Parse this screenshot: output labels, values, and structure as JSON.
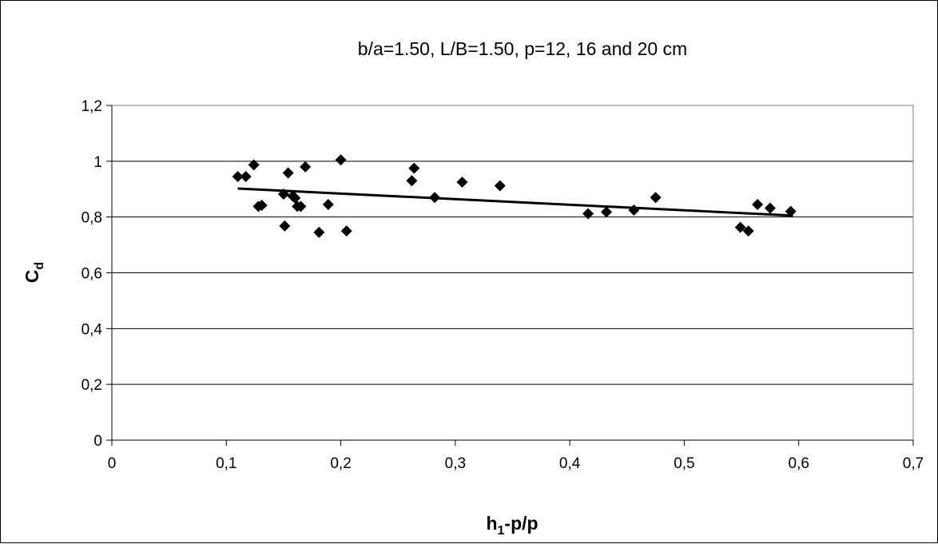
{
  "chart_data": {
    "type": "scatter",
    "title": "b/a=1.50, L/B=1.50, p=12, 16 and 20 cm",
    "xlabel": {
      "main": "h",
      "sub": "1",
      "rest": "-p/p"
    },
    "ylabel": {
      "main": "C",
      "sub": "d"
    },
    "xlim": [
      0,
      0.7
    ],
    "ylim": [
      0,
      1.2
    ],
    "x_ticks": [
      0,
      0.1,
      0.2,
      0.3,
      0.4,
      0.5,
      0.6,
      0.7
    ],
    "x_tick_labels": [
      "0",
      "0,1",
      "0,2",
      "0,3",
      "0,4",
      "0,5",
      "0,6",
      "0,7"
    ],
    "y_ticks": [
      0,
      0.2,
      0.4,
      0.6,
      0.8,
      1.0,
      1.2
    ],
    "y_tick_labels": [
      "0",
      "0,2",
      "0,4",
      "0,6",
      "0,8",
      "1",
      "1,2"
    ],
    "grid": {
      "horizontal": true,
      "vertical": false
    },
    "colors": {
      "marker": "#000000",
      "trendline": "#000000",
      "grid": "#000000"
    },
    "marker": "diamond",
    "points": [
      {
        "x": 0.11,
        "y": 0.945
      },
      {
        "x": 0.117,
        "y": 0.945
      },
      {
        "x": 0.124,
        "y": 0.987
      },
      {
        "x": 0.128,
        "y": 0.838
      },
      {
        "x": 0.131,
        "y": 0.842
      },
      {
        "x": 0.15,
        "y": 0.882
      },
      {
        "x": 0.151,
        "y": 0.768
      },
      {
        "x": 0.154,
        "y": 0.958
      },
      {
        "x": 0.158,
        "y": 0.875
      },
      {
        "x": 0.16,
        "y": 0.868
      },
      {
        "x": 0.162,
        "y": 0.838
      },
      {
        "x": 0.165,
        "y": 0.838
      },
      {
        "x": 0.169,
        "y": 0.98
      },
      {
        "x": 0.181,
        "y": 0.745
      },
      {
        "x": 0.189,
        "y": 0.845
      },
      {
        "x": 0.2,
        "y": 1.005
      },
      {
        "x": 0.205,
        "y": 0.75
      },
      {
        "x": 0.262,
        "y": 0.93
      },
      {
        "x": 0.264,
        "y": 0.975
      },
      {
        "x": 0.282,
        "y": 0.87
      },
      {
        "x": 0.306,
        "y": 0.925
      },
      {
        "x": 0.339,
        "y": 0.912
      },
      {
        "x": 0.416,
        "y": 0.812
      },
      {
        "x": 0.432,
        "y": 0.818
      },
      {
        "x": 0.456,
        "y": 0.825
      },
      {
        "x": 0.475,
        "y": 0.87
      },
      {
        "x": 0.549,
        "y": 0.763
      },
      {
        "x": 0.556,
        "y": 0.75
      },
      {
        "x": 0.564,
        "y": 0.845
      },
      {
        "x": 0.575,
        "y": 0.832
      },
      {
        "x": 0.593,
        "y": 0.82
      }
    ],
    "trendline": {
      "x": [
        0.11,
        0.595
      ],
      "y": [
        0.902,
        0.805
      ]
    }
  }
}
